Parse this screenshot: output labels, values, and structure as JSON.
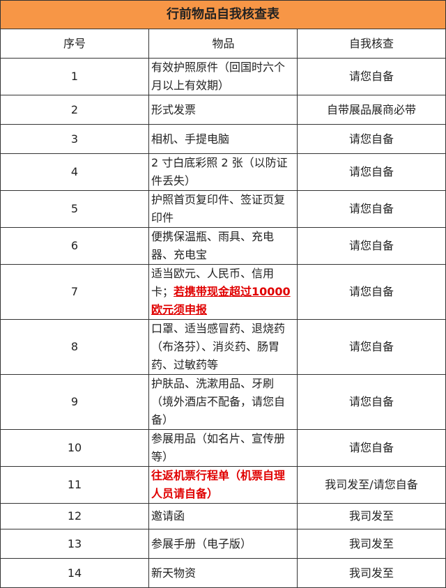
{
  "title": "行前物品自我核查表",
  "headers": {
    "no": "序号",
    "item": "物品",
    "check": "自我核查"
  },
  "rows": [
    {
      "no": "1",
      "item": "有效护照原件（回国时六个月以上有效期）",
      "check": "请您自备"
    },
    {
      "no": "2",
      "item": "形式发票",
      "check": "自带展品展商必带"
    },
    {
      "no": "3",
      "item": "相机、手提电脑",
      "check": "请您自备"
    },
    {
      "no": "4",
      "item": "2 寸白底彩照 2 张（以防证件丢失）",
      "check": "请您自备"
    },
    {
      "no": "5",
      "item": "护照首页复印件、签证页复印件",
      "check": "请您自备"
    },
    {
      "no": "6",
      "item": "便携保温瓶、雨具、充电器、充电宝",
      "check": "请您自备"
    },
    {
      "no": "7",
      "item": "适当欧元、人民币、信用卡；",
      "item_highlight": "若携带现金超过10000 欧元须申报",
      "check": "请您自备"
    },
    {
      "no": "8",
      "item": "口罩、适当感冒药、退烧药（布洛芬）、消炎药、肠胃药、过敏药等",
      "check": "请您自备"
    },
    {
      "no": "9",
      "item": "护肤品、洗漱用品、牙刷（境外酒店不配备，请您自备）",
      "check": "请您自备"
    },
    {
      "no": "10",
      "item": "参展用品（如名片、宣传册等）",
      "check": "请您自备"
    },
    {
      "no": "11",
      "item_highlight": "往返机票行程单（机票自理人员请自备）",
      "check": "我司发至/请您自备"
    },
    {
      "no": "12",
      "item": "邀请函",
      "check": "我司发至"
    },
    {
      "no": "13",
      "item": "参展手册（电子版）",
      "check": "我司发至"
    },
    {
      "no": "14",
      "item": "新天物资",
      "check": "我司发至"
    }
  ],
  "colors": {
    "header_bg": "#f79646",
    "highlight": "#e00000"
  }
}
